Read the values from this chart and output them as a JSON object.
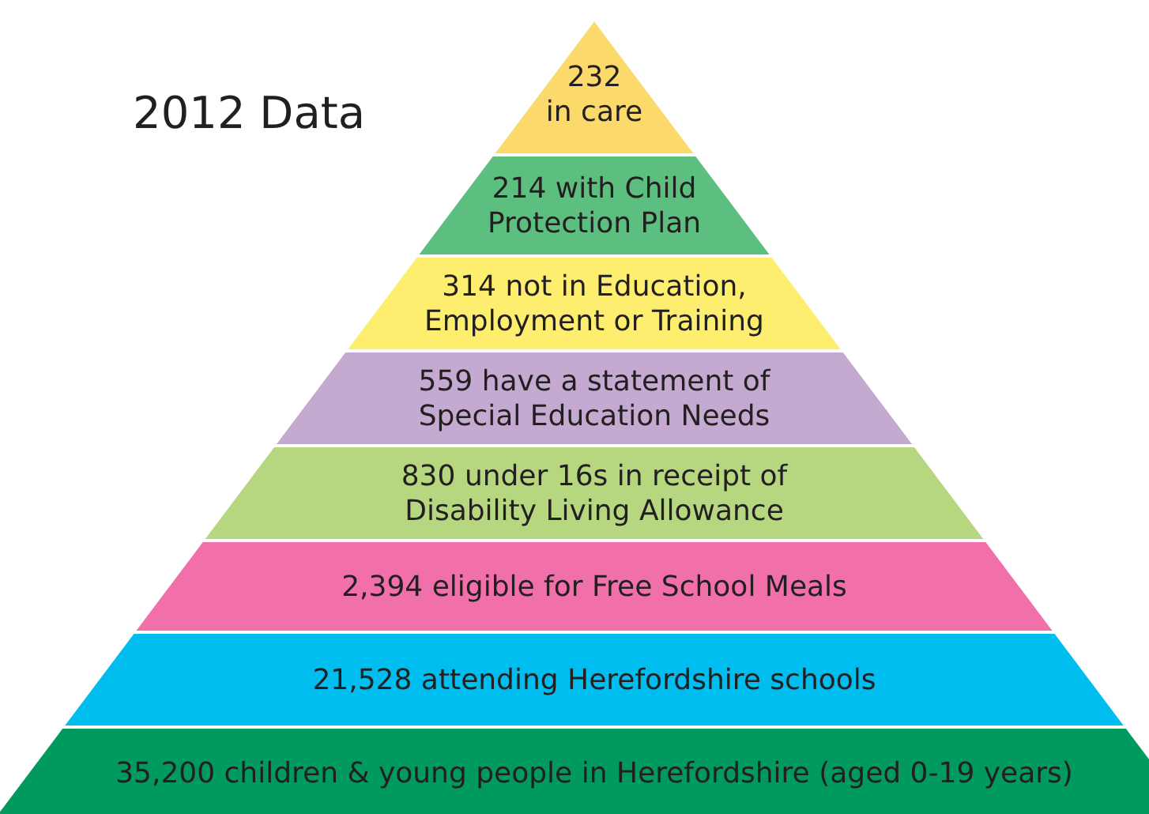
{
  "chart_data": {
    "type": "other",
    "title": "2012 Data",
    "categories": [
      "\nin care",
      " with Child\nProtection Plan",
      " not in Education,\nEmployment or Training",
      " have a statement of\nSpecial Education Needs",
      " under 16s in receipt of\nDisability Living Allowance",
      " eligible for Free School Meals",
      " attending Herefordshire schools",
      " children & young people in Herefordshire (aged 0-19 years)"
    ],
    "values": [
      232,
      214,
      314,
      559,
      830,
      2394,
      21528,
      35200
    ],
    "value_labels": [
      "232",
      "214",
      "314",
      "559",
      "830",
      "2,394",
      "21,528",
      "35,200"
    ],
    "colors": [
      "#fcd96b",
      "#5cbf80",
      "#fdee70",
      "#c4a9d1",
      "#b6d77f",
      "#f170aa",
      "#00bdf0",
      "#009a5f"
    ]
  }
}
